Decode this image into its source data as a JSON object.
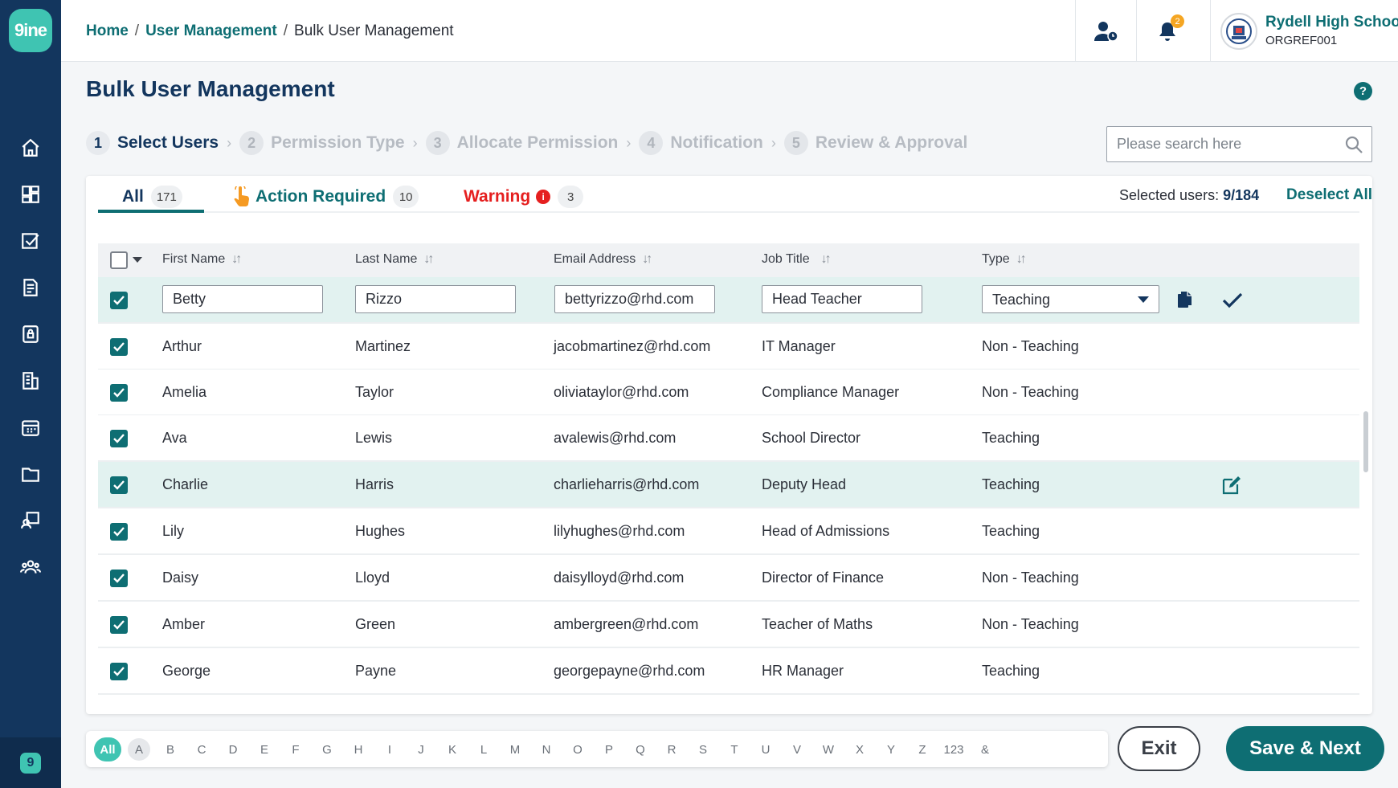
{
  "app": {
    "logo_text": "9ine",
    "mini_logo_text": "9"
  },
  "sidebar": {
    "items": [
      "home-icon",
      "dashboard-icon",
      "tasks-icon",
      "documents-icon",
      "security-icon",
      "building-icon",
      "calendar-icon",
      "folder-icon",
      "training-icon",
      "users-group-icon"
    ]
  },
  "header": {
    "breadcrumb": {
      "home": "Home",
      "section": "User Management",
      "current": "Bulk User Management",
      "separator": "/"
    },
    "notifications_count": "2",
    "school_name": "Rydell High School",
    "org_ref": "ORGREF001"
  },
  "page": {
    "title": "Bulk User Management",
    "help": "?"
  },
  "steps": [
    {
      "num": "1",
      "label": "Select Users"
    },
    {
      "num": "2",
      "label": "Permission Type"
    },
    {
      "num": "3",
      "label": "Allocate Permission"
    },
    {
      "num": "4",
      "label": "Notification"
    },
    {
      "num": "5",
      "label": "Review & Approval"
    }
  ],
  "search": {
    "placeholder": "Please search here"
  },
  "tabs": {
    "all": {
      "label": "All",
      "count": "171"
    },
    "action": {
      "label": "Action Required",
      "count": "10"
    },
    "warning": {
      "label": "Warning",
      "count": "3"
    }
  },
  "selection": {
    "label": "Selected users:",
    "value": "9/184",
    "deselect": "Deselect All"
  },
  "table": {
    "columns": [
      "First Name",
      "Last Name",
      "Email Address",
      "Job Title",
      "Type"
    ],
    "editing_row": {
      "first": "Betty",
      "last": "Rizzo",
      "email": "bettyrizzo@rhd.com",
      "job": "Head Teacher",
      "type": "Teaching"
    },
    "rows": [
      {
        "first": "Arthur",
        "last": "Martinez",
        "email": "jacobmartinez@rhd.com",
        "job": "IT Manager",
        "type": "Non - Teaching"
      },
      {
        "first": "Amelia",
        "last": "Taylor",
        "email": "oliviataylor@rhd.com",
        "job": "Compliance Manager",
        "type": "Non - Teaching"
      },
      {
        "first": "Ava",
        "last": "Lewis",
        "email": "avalewis@rhd.com",
        "job": "School Director",
        "type": "Teaching"
      },
      {
        "first": "Charlie",
        "last": "Harris",
        "email": "charlieharris@rhd.com",
        "job": "Deputy Head",
        "type": "Teaching"
      },
      {
        "first": "Lily",
        "last": "Hughes",
        "email": "lilyhughes@rhd.com",
        "job": "Head of Admissions",
        "type": "Teaching"
      },
      {
        "first": "Daisy",
        "last": "Lloyd",
        "email": "daisylloyd@rhd.com",
        "job": "Director of Finance",
        "type": "Non - Teaching"
      },
      {
        "first": "Amber",
        "last": "Green",
        "email": "ambergreen@rhd.com",
        "job": "Teacher of Maths",
        "type": "Non - Teaching"
      },
      {
        "first": "George",
        "last": "Payne",
        "email": "georgepayne@rhd.com",
        "job": "HR Manager",
        "type": "Teaching"
      }
    ]
  },
  "alphabet": [
    "All",
    "A",
    "B",
    "C",
    "D",
    "E",
    "F",
    "G",
    "H",
    "I",
    "J",
    "K",
    "L",
    "M",
    "N",
    "O",
    "P",
    "Q",
    "R",
    "S",
    "T",
    "U",
    "V",
    "W",
    "X",
    "Y",
    "Z",
    "123",
    "&"
  ],
  "footer": {
    "exit": "Exit",
    "save_next": "Save & Next"
  },
  "colors": {
    "primary": "#0e6e73",
    "navy": "#13365e",
    "accent": "#3fc4b2",
    "warning": "#e51f1f",
    "badge": "#f5a623",
    "highlight_row": "#e2f2f0"
  }
}
